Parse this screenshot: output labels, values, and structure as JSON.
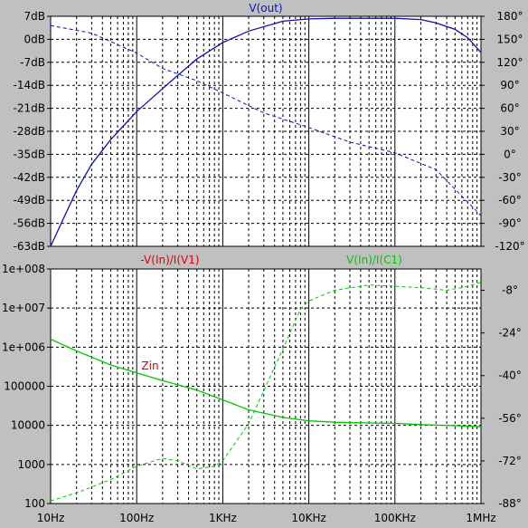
{
  "colors": {
    "background": "#c0c0c0",
    "plot_bg": "#ffffff",
    "grid": "#000000",
    "blue": "#1010b8",
    "red": "#e00000",
    "green": "#00c800"
  },
  "x_axis": {
    "type": "log",
    "range": [
      10,
      1000000
    ],
    "ticks": [
      {
        "value": 10,
        "label": "10Hz"
      },
      {
        "value": 100,
        "label": "100Hz"
      },
      {
        "value": 1000,
        "label": "1KHz"
      },
      {
        "value": 10000,
        "label": "10KHz"
      },
      {
        "value": 100000,
        "label": "100KHz"
      },
      {
        "value": 1000000,
        "label": "1MHz"
      }
    ]
  },
  "chart_data": [
    {
      "type": "line",
      "title": "V(out)",
      "title_color": "#1010b8",
      "x_scale": "log",
      "ylim": [
        -63,
        7
      ],
      "ylim_right": [
        -120,
        180
      ],
      "y_ticks": [
        {
          "value": 7,
          "label": "7dB"
        },
        {
          "value": 0,
          "label": "0dB"
        },
        {
          "value": -7,
          "label": "-7dB"
        },
        {
          "value": -14,
          "label": "-14dB"
        },
        {
          "value": -21,
          "label": "-21dB"
        },
        {
          "value": -28,
          "label": "-28dB"
        },
        {
          "value": -35,
          "label": "-35dB"
        },
        {
          "value": -42,
          "label": "-42dB"
        },
        {
          "value": -49,
          "label": "-49dB"
        },
        {
          "value": -56,
          "label": "-56dB"
        },
        {
          "value": -63,
          "label": "-63dB"
        }
      ],
      "y_ticks_right": [
        {
          "value": 180,
          "label": "180°"
        },
        {
          "value": 150,
          "label": "150°"
        },
        {
          "value": 120,
          "label": "120°"
        },
        {
          "value": 90,
          "label": "90°"
        },
        {
          "value": 60,
          "label": "60°"
        },
        {
          "value": 30,
          "label": "30°"
        },
        {
          "value": 0,
          "label": "0°"
        },
        {
          "value": -30,
          "label": "-30°"
        },
        {
          "value": -60,
          "label": "-60°"
        },
        {
          "value": -90,
          "label": "-90°"
        },
        {
          "value": -120,
          "label": "-120°"
        }
      ],
      "series": [
        {
          "axis": "left",
          "style": "solid",
          "color": "#1010b8",
          "points": [
            [
              10,
              -63
            ],
            [
              15,
              -53
            ],
            [
              20,
              -46
            ],
            [
              30,
              -38
            ],
            [
              50,
              -30.5
            ],
            [
              100,
              -22
            ],
            [
              200,
              -15
            ],
            [
              300,
              -11
            ],
            [
              500,
              -6
            ],
            [
              1000,
              -1
            ],
            [
              2000,
              2.5
            ],
            [
              5000,
              5.5
            ],
            [
              10000,
              6.2
            ],
            [
              20000,
              6.4
            ],
            [
              50000,
              6.4
            ],
            [
              100000,
              6.4
            ],
            [
              200000,
              6
            ],
            [
              300000,
              5
            ],
            [
              500000,
              3
            ],
            [
              700000,
              0.5
            ],
            [
              1000000,
              -4
            ]
          ]
        },
        {
          "axis": "right",
          "style": "dashed",
          "color": "#1010b8",
          "points": [
            [
              10,
              168
            ],
            [
              30,
              158
            ],
            [
              100,
              132
            ],
            [
              200,
              112
            ],
            [
              500,
              96
            ],
            [
              1000,
              80
            ],
            [
              3000,
              54
            ],
            [
              10000,
              35
            ],
            [
              30000,
              16
            ],
            [
              100000,
              2
            ],
            [
              300000,
              -20
            ],
            [
              1000000,
              -80
            ]
          ]
        }
      ]
    },
    {
      "type": "line",
      "x_scale": "log",
      "y_scale": "log",
      "ylim": [
        100,
        100000000
      ],
      "ylim_right": [
        -88,
        0
      ],
      "annotations": [
        {
          "text": "-V(In)/I(V1)",
          "color": "#e00000",
          "position": "top-left"
        },
        {
          "text": "V(In)/I(C1)",
          "color": "#00c800",
          "position": "top-right"
        },
        {
          "text": "Zin",
          "color": "#e00000",
          "position": "near-curve"
        }
      ],
      "y_ticks": [
        {
          "value": 100000000,
          "label": "1e+008"
        },
        {
          "value": 10000000,
          "label": "1e+007"
        },
        {
          "value": 1000000,
          "label": "1e+006"
        },
        {
          "value": 100000,
          "label": "100000"
        },
        {
          "value": 10000,
          "label": "10000"
        },
        {
          "value": 1000,
          "label": "1000"
        },
        {
          "value": 100,
          "label": "100"
        }
      ],
      "y_ticks_right": [
        {
          "value": -8,
          "label": "-8°"
        },
        {
          "value": -24,
          "label": "-24°"
        },
        {
          "value": -40,
          "label": "-40°"
        },
        {
          "value": -56,
          "label": "-56°"
        },
        {
          "value": -72,
          "label": "-72°"
        },
        {
          "value": -88,
          "label": "-88°"
        }
      ],
      "series": [
        {
          "axis": "left",
          "style": "solid",
          "color": "#00c800",
          "points": [
            [
              10,
              1600000
            ],
            [
              20,
              800000
            ],
            [
              50,
              350000
            ],
            [
              100,
              220000
            ],
            [
              200,
              140000
            ],
            [
              500,
              80000
            ],
            [
              1000,
              45000
            ],
            [
              2000,
              25000
            ],
            [
              5000,
              16000
            ],
            [
              10000,
              13000
            ],
            [
              20000,
              12000
            ],
            [
              50000,
              11500
            ],
            [
              100000,
              11300
            ],
            [
              200000,
              10500
            ],
            [
              500000,
              9800
            ],
            [
              1000000,
              9200
            ]
          ]
        },
        {
          "axis": "right",
          "style": "dashed",
          "color": "#00c800",
          "points": [
            [
              10,
              -87
            ],
            [
              20,
              -84
            ],
            [
              50,
              -79
            ],
            [
              100,
              -74
            ],
            [
              200,
              -71
            ],
            [
              300,
              -72
            ],
            [
              500,
              -75
            ],
            [
              800,
              -74
            ],
            [
              1000,
              -72
            ],
            [
              2000,
              -58
            ],
            [
              5000,
              -30
            ],
            [
              8000,
              -15
            ],
            [
              10000,
              -12
            ],
            [
              20000,
              -8
            ],
            [
              50000,
              -6
            ],
            [
              100000,
              -6.5
            ],
            [
              200000,
              -7
            ],
            [
              400000,
              -8
            ],
            [
              600000,
              -7
            ],
            [
              1000000,
              -5
            ]
          ]
        }
      ]
    }
  ]
}
